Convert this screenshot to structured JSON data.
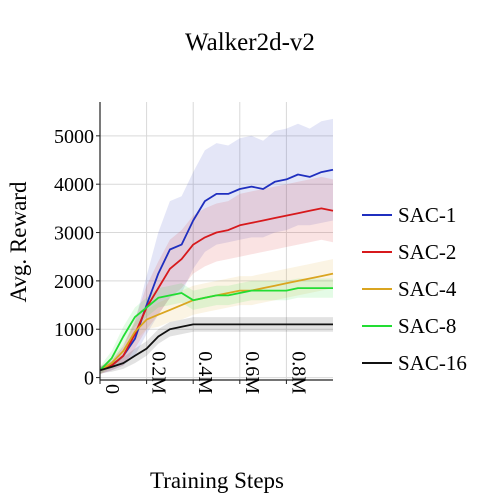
{
  "chart_data": {
    "type": "line",
    "title": "Walker2d-v2",
    "xlabel": "Training Steps",
    "ylabel": "Avg. Reward",
    "xlim": [
      0,
      1.0
    ],
    "ylim": [
      -50,
      5700
    ],
    "x_ticks": [
      {
        "value": 0,
        "label": "0"
      },
      {
        "value": 0.2,
        "label": "0.2M"
      },
      {
        "value": 0.4,
        "label": "0.4M"
      },
      {
        "value": 0.6,
        "label": "0.6M"
      },
      {
        "value": 0.8,
        "label": "0.8M"
      }
    ],
    "y_ticks": [
      {
        "value": 0,
        "label": "0"
      },
      {
        "value": 1000,
        "label": "1000"
      },
      {
        "value": 2000,
        "label": "2000"
      },
      {
        "value": 3000,
        "label": "3000"
      },
      {
        "value": 4000,
        "label": "4000"
      },
      {
        "value": 5000,
        "label": "5000"
      }
    ],
    "grid": true,
    "legend_position": "right",
    "x_unit": "millions of steps",
    "x": [
      0,
      0.05,
      0.1,
      0.15,
      0.2,
      0.25,
      0.3,
      0.35,
      0.4,
      0.45,
      0.5,
      0.55,
      0.6,
      0.65,
      0.7,
      0.75,
      0.8,
      0.85,
      0.9,
      0.95,
      1.0
    ],
    "series": [
      {
        "name": "SAC-1",
        "color": "#1f2fbf",
        "values": [
          150,
          250,
          450,
          800,
          1500,
          2150,
          2650,
          2750,
          3250,
          3650,
          3800,
          3800,
          3900,
          3950,
          3900,
          4050,
          4100,
          4200,
          4150,
          4250,
          4300
        ],
        "band": [
          80,
          100,
          200,
          350,
          600,
          850,
          1000,
          1000,
          1000,
          1050,
          1050,
          1000,
          1050,
          1050,
          1000,
          1050,
          1050,
          1050,
          1000,
          1050,
          1050
        ]
      },
      {
        "name": "SAC-2",
        "color": "#d7191c",
        "values": [
          150,
          250,
          450,
          900,
          1450,
          1850,
          2250,
          2450,
          2750,
          2900,
          3000,
          3050,
          3150,
          3200,
          3250,
          3300,
          3350,
          3400,
          3450,
          3500,
          3450
        ],
        "band": [
          80,
          100,
          200,
          300,
          450,
          550,
          600,
          600,
          600,
          600,
          600,
          600,
          650,
          650,
          650,
          650,
          650,
          650,
          650,
          650,
          650
        ]
      },
      {
        "name": "SAC-4",
        "color": "#daa520",
        "values": [
          150,
          300,
          550,
          950,
          1200,
          1300,
          1400,
          1500,
          1600,
          1650,
          1700,
          1750,
          1800,
          1800,
          1850,
          1900,
          1950,
          2000,
          2050,
          2100,
          2150
        ],
        "band": [
          80,
          100,
          150,
          200,
          200,
          250,
          250,
          300,
          300,
          300,
          300,
          300,
          300,
          300,
          300,
          300,
          300,
          300,
          300,
          300,
          300
        ]
      },
      {
        "name": "SAC-8",
        "color": "#22dd33",
        "values": [
          150,
          400,
          850,
          1250,
          1450,
          1650,
          1700,
          1750,
          1600,
          1650,
          1700,
          1700,
          1750,
          1800,
          1800,
          1800,
          1800,
          1850,
          1850,
          1850,
          1850
        ],
        "band": [
          80,
          150,
          200,
          200,
          200,
          200,
          200,
          200,
          200,
          200,
          200,
          200,
          200,
          200,
          200,
          200,
          200,
          200,
          200,
          200,
          200
        ]
      },
      {
        "name": "SAC-16",
        "color": "#111111",
        "values": [
          150,
          220,
          300,
          450,
          600,
          850,
          1000,
          1050,
          1100,
          1100,
          1100,
          1100,
          1100,
          1100,
          1100,
          1100,
          1100,
          1100,
          1100,
          1100,
          1100
        ],
        "band": [
          60,
          100,
          120,
          150,
          150,
          150,
          150,
          150,
          150,
          150,
          150,
          150,
          150,
          150,
          150,
          150,
          150,
          150,
          150,
          150,
          150
        ]
      }
    ]
  }
}
